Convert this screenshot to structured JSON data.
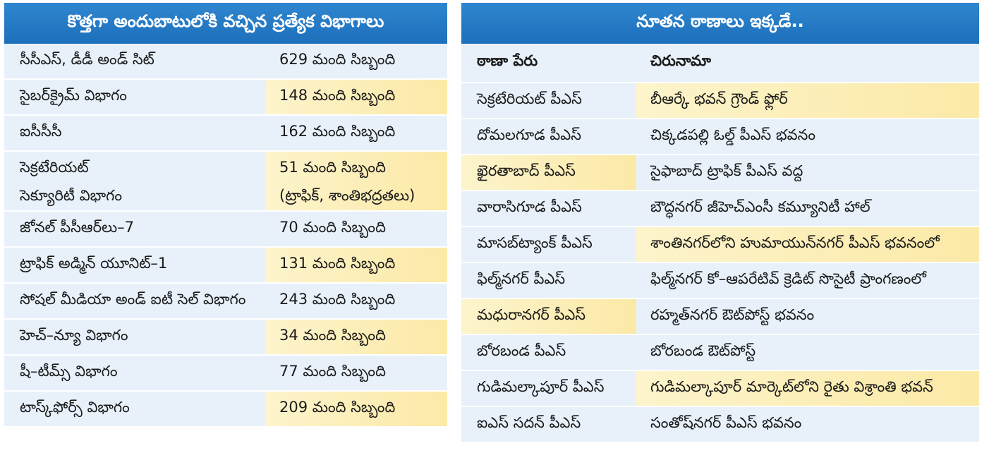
{
  "left_table": {
    "title": "కొత్తగా అందుబాటులోకి వచ్చిన ప్రత్యేక విభాగాలు",
    "rows": [
      {
        "name": "సీసీఎస్, డీడీ అండ్ సిట్",
        "staff": "629 మంది సిబ్బంది"
      },
      {
        "name": "సైబర్‌క్రైమ్ విభాగం",
        "staff": "148 మంది సిబ్బంది"
      },
      {
        "name": "ఐసీసీసీ",
        "staff": "162 మంది సిబ్బంది"
      },
      {
        "name": "సెక్రటేరియట్",
        "name2": "సెక్యూరిటీ విభాగం",
        "staff": "51 మంది సిబ్బంది",
        "staff2": "(ట్రాఫిక్, శాంతిభద్రతలు)"
      },
      {
        "name": "జోనల్ పీసీఆర్‌లు–7",
        "staff": "70 మంది సిబ్బంది"
      },
      {
        "name": "ట్రాఫిక్ అడ్మిన్ యూనిట్–1",
        "staff": "131 మంది సిబ్బంది"
      },
      {
        "name": "సోషల్ మీడియా అండ్ ఐటీ సెల్ విభాగం",
        "staff": "243 మంది సిబ్బంది"
      },
      {
        "name": "హెచ్–న్యూ విభాగం",
        "staff": "34 మంది సిబ్బంది"
      },
      {
        "name": "షీ–టీమ్స్ విభాగం",
        "staff": "77 మంది సిబ్బంది"
      },
      {
        "name": "టాస్క్‌ఫోర్స్ విభాగం",
        "staff": "209 మంది సిబ్బంది"
      }
    ]
  },
  "right_table": {
    "title": "నూతన ఠాణాలు ఇక్కడే..",
    "headers": [
      "ఠాణా పేరు",
      "చిరునామా"
    ],
    "rows": [
      {
        "station": "సెక్రటేరియట్ పీఎస్",
        "address": "బీఆర్కే భవన్ గ్రౌండ్ ఫ్లోర్"
      },
      {
        "station": "దోమలగూడ పీఎస్",
        "address": "చిక్కడపల్లి ఓల్డ్ పీఎస్ భవనం"
      },
      {
        "station": "ఖైరతాబాద్ పీఎస్",
        "address": "సైఫాబాద్ ట్రాఫిక్ పీఎస్ వద్ద"
      },
      {
        "station": "వారాసిగూడ పీఎస్",
        "address": "బౌద్ధనగర్ జీహెచ్ఎంసీ కమ్యూనిటీ హాల్"
      },
      {
        "station": "మాసబ్‌ట్యాంక్ పీఎస్",
        "address": "శాంతినగర్‌లోని హుమాయున్‌నగర్ పీఎస్ భవనంలో"
      },
      {
        "station": "ఫిల్మ్‌నగర్ పీఎస్",
        "address": "ఫిల్మ్‌నగర్ కో–ఆపరేటివ్ క్రెడిట్ సొసైటీ ప్రాంగణంలో"
      },
      {
        "station": "మధురానగర్ పీఎస్",
        "address": "రహ్మత్‌నగర్ ఔట్‌పోస్ట్ భవనం"
      },
      {
        "station": "బోరబండ పీఎస్",
        "address": "బోరబండ ఔట్‌పోస్ట్"
      },
      {
        "station": "గుడిమల్కాపూర్ పీఎస్",
        "address": "గుడిమల్కాపూర్ మార్కెట్‌లోని రైతు విశ్రాంతి భవన్"
      },
      {
        "station": "ఐఎస్ సదన్ పీఎస్",
        "address": "సంతోష్‌నగర్ పీఎస్ భవనం"
      }
    ]
  }
}
